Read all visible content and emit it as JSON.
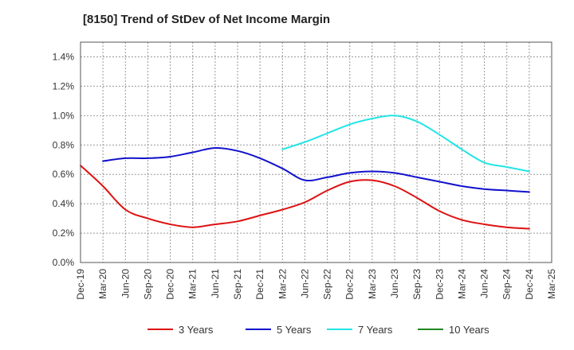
{
  "chart_data": {
    "type": "line",
    "title": "[8150]  Trend of StDev of Net Income Margin",
    "xlabel": "",
    "ylabel": "",
    "x_tick_labels": [
      "Dec-19",
      "Mar-20",
      "Jun-20",
      "Sep-20",
      "Dec-20",
      "Mar-21",
      "Jun-21",
      "Sep-21",
      "Dec-21",
      "Mar-22",
      "Jun-22",
      "Sep-22",
      "Dec-22",
      "Mar-23",
      "Jun-23",
      "Sep-23",
      "Dec-23",
      "Mar-24",
      "Jun-24",
      "Sep-24",
      "Dec-24",
      "Mar-25"
    ],
    "y_tick_labels": [
      "0.0%",
      "0.2%",
      "0.4%",
      "0.6%",
      "0.8%",
      "1.0%",
      "1.2%",
      "1.4%"
    ],
    "ylim": [
      0,
      1.5
    ],
    "y_unit": "%",
    "grid": true,
    "legend_position": "bottom",
    "series": [
      {
        "name": "3 Years",
        "color": "#dd1111",
        "x": [
          "Dec-19",
          "Mar-20",
          "Jun-20",
          "Sep-20",
          "Dec-20",
          "Mar-21",
          "Jun-21",
          "Sep-21",
          "Dec-21",
          "Mar-22",
          "Jun-22",
          "Sep-22",
          "Dec-22",
          "Mar-23",
          "Jun-23",
          "Sep-23",
          "Dec-23",
          "Mar-24",
          "Jun-24",
          "Sep-24",
          "Dec-24"
        ],
        "values": [
          0.66,
          0.52,
          0.36,
          0.3,
          0.26,
          0.24,
          0.26,
          0.28,
          0.32,
          0.36,
          0.41,
          0.49,
          0.55,
          0.56,
          0.52,
          0.44,
          0.35,
          0.29,
          0.26,
          0.24,
          0.23
        ]
      },
      {
        "name": "5 Years",
        "color": "#1111cc",
        "x": [
          "Mar-20",
          "Jun-20",
          "Sep-20",
          "Dec-20",
          "Mar-21",
          "Jun-21",
          "Sep-21",
          "Dec-21",
          "Mar-22",
          "Jun-22",
          "Sep-22",
          "Dec-22",
          "Mar-23",
          "Jun-23",
          "Sep-23",
          "Dec-23",
          "Mar-24",
          "Jun-24",
          "Sep-24",
          "Dec-24"
        ],
        "values": [
          0.69,
          0.71,
          0.71,
          0.72,
          0.75,
          0.78,
          0.76,
          0.71,
          0.64,
          0.56,
          0.58,
          0.61,
          0.62,
          0.61,
          0.58,
          0.55,
          0.52,
          0.5,
          0.49,
          0.48
        ]
      },
      {
        "name": "7 Years",
        "color": "#22e5e5",
        "x": [
          "Mar-22",
          "Jun-22",
          "Sep-22",
          "Dec-22",
          "Mar-23",
          "Jun-23",
          "Sep-23",
          "Dec-23",
          "Mar-24",
          "Jun-24",
          "Sep-24",
          "Dec-24"
        ],
        "values": [
          0.77,
          0.82,
          0.88,
          0.94,
          0.98,
          1.0,
          0.96,
          0.87,
          0.77,
          0.68,
          0.65,
          0.62
        ]
      },
      {
        "name": "10 Years",
        "color": "#228822",
        "x": [],
        "values": []
      }
    ]
  }
}
